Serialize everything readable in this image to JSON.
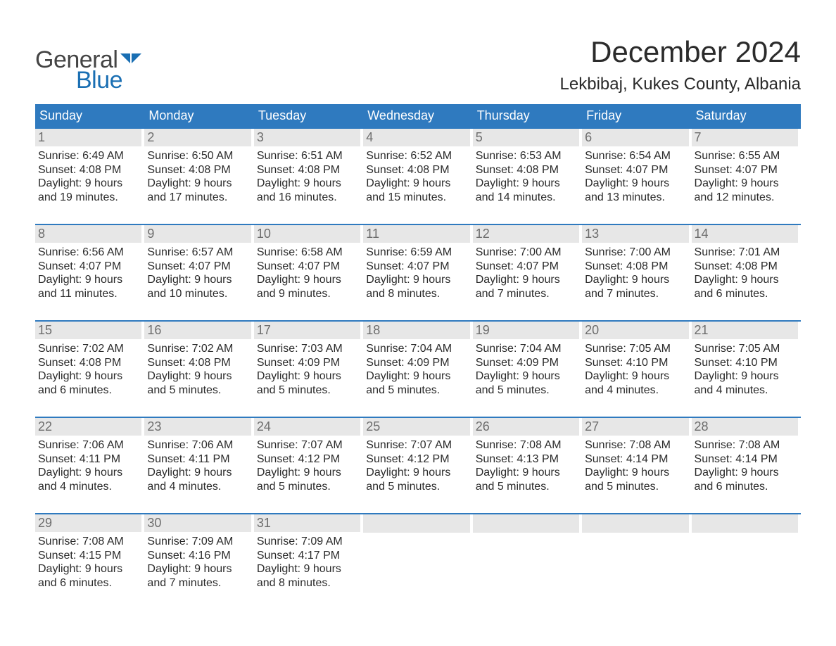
{
  "logo": {
    "line1": "General",
    "line2": "Blue"
  },
  "title": "December 2024",
  "location": "Lekbibaj, Kukes County, Albania",
  "colors": {
    "header_bg": "#2f7abf",
    "header_text": "#ffffff",
    "daynum_bg": "#e7e7e7",
    "daynum_text": "#6d6d6d",
    "body_text": "#2b2b2b",
    "rule": "#2f7abf",
    "logo_gray": "#444444",
    "logo_blue": "#1a6fb3",
    "page_bg": "#ffffff"
  },
  "typography": {
    "title_fontsize": 42,
    "location_fontsize": 24,
    "header_fontsize": 18,
    "daynum_fontsize": 18,
    "body_fontsize": 16,
    "logo_fontsize": 34
  },
  "calendar": {
    "type": "table",
    "columns": [
      "Sunday",
      "Monday",
      "Tuesday",
      "Wednesday",
      "Thursday",
      "Friday",
      "Saturday"
    ],
    "weeks": [
      [
        {
          "n": "1",
          "sr": "Sunrise: 6:49 AM",
          "ss": "Sunset: 4:08 PM",
          "d1": "Daylight: 9 hours",
          "d2": "and 19 minutes."
        },
        {
          "n": "2",
          "sr": "Sunrise: 6:50 AM",
          "ss": "Sunset: 4:08 PM",
          "d1": "Daylight: 9 hours",
          "d2": "and 17 minutes."
        },
        {
          "n": "3",
          "sr": "Sunrise: 6:51 AM",
          "ss": "Sunset: 4:08 PM",
          "d1": "Daylight: 9 hours",
          "d2": "and 16 minutes."
        },
        {
          "n": "4",
          "sr": "Sunrise: 6:52 AM",
          "ss": "Sunset: 4:08 PM",
          "d1": "Daylight: 9 hours",
          "d2": "and 15 minutes."
        },
        {
          "n": "5",
          "sr": "Sunrise: 6:53 AM",
          "ss": "Sunset: 4:08 PM",
          "d1": "Daylight: 9 hours",
          "d2": "and 14 minutes."
        },
        {
          "n": "6",
          "sr": "Sunrise: 6:54 AM",
          "ss": "Sunset: 4:07 PM",
          "d1": "Daylight: 9 hours",
          "d2": "and 13 minutes."
        },
        {
          "n": "7",
          "sr": "Sunrise: 6:55 AM",
          "ss": "Sunset: 4:07 PM",
          "d1": "Daylight: 9 hours",
          "d2": "and 12 minutes."
        }
      ],
      [
        {
          "n": "8",
          "sr": "Sunrise: 6:56 AM",
          "ss": "Sunset: 4:07 PM",
          "d1": "Daylight: 9 hours",
          "d2": "and 11 minutes."
        },
        {
          "n": "9",
          "sr": "Sunrise: 6:57 AM",
          "ss": "Sunset: 4:07 PM",
          "d1": "Daylight: 9 hours",
          "d2": "and 10 minutes."
        },
        {
          "n": "10",
          "sr": "Sunrise: 6:58 AM",
          "ss": "Sunset: 4:07 PM",
          "d1": "Daylight: 9 hours",
          "d2": "and 9 minutes."
        },
        {
          "n": "11",
          "sr": "Sunrise: 6:59 AM",
          "ss": "Sunset: 4:07 PM",
          "d1": "Daylight: 9 hours",
          "d2": "and 8 minutes."
        },
        {
          "n": "12",
          "sr": "Sunrise: 7:00 AM",
          "ss": "Sunset: 4:07 PM",
          "d1": "Daylight: 9 hours",
          "d2": "and 7 minutes."
        },
        {
          "n": "13",
          "sr": "Sunrise: 7:00 AM",
          "ss": "Sunset: 4:08 PM",
          "d1": "Daylight: 9 hours",
          "d2": "and 7 minutes."
        },
        {
          "n": "14",
          "sr": "Sunrise: 7:01 AM",
          "ss": "Sunset: 4:08 PM",
          "d1": "Daylight: 9 hours",
          "d2": "and 6 minutes."
        }
      ],
      [
        {
          "n": "15",
          "sr": "Sunrise: 7:02 AM",
          "ss": "Sunset: 4:08 PM",
          "d1": "Daylight: 9 hours",
          "d2": "and 6 minutes."
        },
        {
          "n": "16",
          "sr": "Sunrise: 7:02 AM",
          "ss": "Sunset: 4:08 PM",
          "d1": "Daylight: 9 hours",
          "d2": "and 5 minutes."
        },
        {
          "n": "17",
          "sr": "Sunrise: 7:03 AM",
          "ss": "Sunset: 4:09 PM",
          "d1": "Daylight: 9 hours",
          "d2": "and 5 minutes."
        },
        {
          "n": "18",
          "sr": "Sunrise: 7:04 AM",
          "ss": "Sunset: 4:09 PM",
          "d1": "Daylight: 9 hours",
          "d2": "and 5 minutes."
        },
        {
          "n": "19",
          "sr": "Sunrise: 7:04 AM",
          "ss": "Sunset: 4:09 PM",
          "d1": "Daylight: 9 hours",
          "d2": "and 5 minutes."
        },
        {
          "n": "20",
          "sr": "Sunrise: 7:05 AM",
          "ss": "Sunset: 4:10 PM",
          "d1": "Daylight: 9 hours",
          "d2": "and 4 minutes."
        },
        {
          "n": "21",
          "sr": "Sunrise: 7:05 AM",
          "ss": "Sunset: 4:10 PM",
          "d1": "Daylight: 9 hours",
          "d2": "and 4 minutes."
        }
      ],
      [
        {
          "n": "22",
          "sr": "Sunrise: 7:06 AM",
          "ss": "Sunset: 4:11 PM",
          "d1": "Daylight: 9 hours",
          "d2": "and 4 minutes."
        },
        {
          "n": "23",
          "sr": "Sunrise: 7:06 AM",
          "ss": "Sunset: 4:11 PM",
          "d1": "Daylight: 9 hours",
          "d2": "and 4 minutes."
        },
        {
          "n": "24",
          "sr": "Sunrise: 7:07 AM",
          "ss": "Sunset: 4:12 PM",
          "d1": "Daylight: 9 hours",
          "d2": "and 5 minutes."
        },
        {
          "n": "25",
          "sr": "Sunrise: 7:07 AM",
          "ss": "Sunset: 4:12 PM",
          "d1": "Daylight: 9 hours",
          "d2": "and 5 minutes."
        },
        {
          "n": "26",
          "sr": "Sunrise: 7:08 AM",
          "ss": "Sunset: 4:13 PM",
          "d1": "Daylight: 9 hours",
          "d2": "and 5 minutes."
        },
        {
          "n": "27",
          "sr": "Sunrise: 7:08 AM",
          "ss": "Sunset: 4:14 PM",
          "d1": "Daylight: 9 hours",
          "d2": "and 5 minutes."
        },
        {
          "n": "28",
          "sr": "Sunrise: 7:08 AM",
          "ss": "Sunset: 4:14 PM",
          "d1": "Daylight: 9 hours",
          "d2": "and 6 minutes."
        }
      ],
      [
        {
          "n": "29",
          "sr": "Sunrise: 7:08 AM",
          "ss": "Sunset: 4:15 PM",
          "d1": "Daylight: 9 hours",
          "d2": "and 6 minutes."
        },
        {
          "n": "30",
          "sr": "Sunrise: 7:09 AM",
          "ss": "Sunset: 4:16 PM",
          "d1": "Daylight: 9 hours",
          "d2": "and 7 minutes."
        },
        {
          "n": "31",
          "sr": "Sunrise: 7:09 AM",
          "ss": "Sunset: 4:17 PM",
          "d1": "Daylight: 9 hours",
          "d2": "and 8 minutes."
        },
        null,
        null,
        null,
        null
      ]
    ]
  }
}
